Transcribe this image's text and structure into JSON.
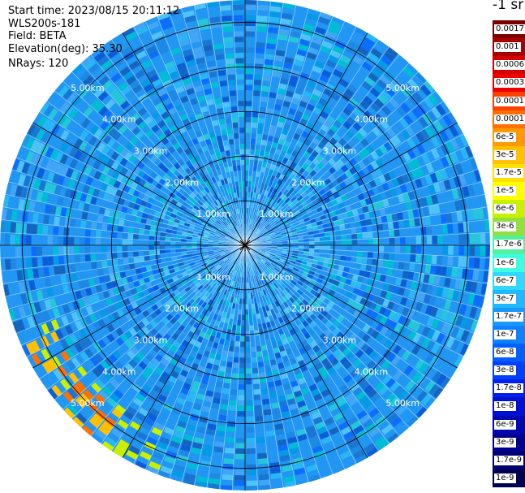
{
  "header": {
    "start_time": "Start time: 2023/08/15 20:11:12",
    "instrument": "WLS200s-181",
    "field": "Field: BETA",
    "elevation": "Elevation(deg): 35.30",
    "nrays": "NRays: 120"
  },
  "colorbar": {
    "unit_label": "-1 sr",
    "labels": [
      "0.0017",
      "0.001",
      "0.0006",
      "0.0003",
      "0.00017",
      "0.0001",
      "6e-5",
      "3e-5",
      "1.7e-5",
      "1e-5",
      "6e-6",
      "3e-6",
      "1.7e-6",
      "1e-6",
      "6e-7",
      "3e-7",
      "1.7e-7",
      "1e-7",
      "6e-8",
      "3e-8",
      "1.7e-8",
      "1e-8",
      "6e-9",
      "3e-9",
      "1.7e-9",
      "1e-9"
    ],
    "colors": [
      "#7a0000",
      "#a80000",
      "#d40000",
      "#f00000",
      "#ff4000",
      "#ff7000",
      "#ff9a00",
      "#ffc000",
      "#ffe000",
      "#ffff00",
      "#c8f000",
      "#90e040",
      "#50f0a0",
      "#40ffe0",
      "#30d8ff",
      "#20b8ff",
      "#1898ff",
      "#1080ff",
      "#0060ff",
      "#0040ff",
      "#0020f0",
      "#0010d0",
      "#0008b0",
      "#000090",
      "#000070",
      "#000050"
    ]
  },
  "chart_data": {
    "type": "ppi-polar",
    "title": "Start time: 2023/08/15 20:11:12",
    "instrument": "WLS200s-181",
    "field": "BETA",
    "elevation_deg": 35.3,
    "n_rays": 120,
    "range_rings_km": [
      1.0,
      2.0,
      3.0,
      4.0,
      5.0
    ],
    "range_ring_labels": [
      "1.00km",
      "2.00km",
      "3.00km",
      "4.00km",
      "5.00km"
    ],
    "spoke_angles_deg": [
      0,
      30,
      60,
      90,
      120,
      150,
      180,
      210,
      240,
      270,
      300,
      330
    ],
    "max_range_km": 5.5,
    "colorscale": "log",
    "value_range": [
      1e-09,
      0.0017
    ],
    "dominant_value_range": [
      3e-08,
      1e-07
    ],
    "background_color": "#2196f3"
  }
}
